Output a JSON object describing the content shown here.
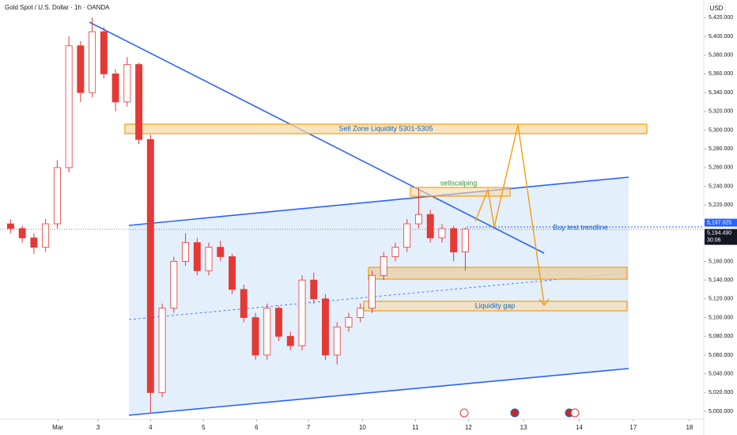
{
  "chart_data": {
    "type": "candlestick",
    "title": "Gold Spot / U.S. Dollar · 1h · OANDA",
    "currency": "USD",
    "x": [
      -0.65,
      -0.43,
      -0.21,
      0.01,
      0.23,
      0.45,
      0.67,
      0.89,
      1.11,
      1.33,
      1.55,
      1.77,
      1.99,
      2.21,
      2.43,
      2.65,
      2.87,
      3.09,
      3.31,
      3.53,
      3.75,
      3.97,
      4.19,
      4.41,
      4.63,
      4.85,
      5.07,
      5.29,
      5.51,
      5.73,
      5.95,
      6.17,
      6.39,
      6.61,
      6.83,
      7.05,
      7.27,
      7.49,
      7.71,
      7.93
    ],
    "open": [
      5200,
      5195,
      5185,
      5175,
      5200,
      5260,
      5390,
      5340,
      5405,
      5360,
      5330,
      5370,
      5290,
      5020,
      5110,
      5160,
      5180,
      5150,
      5175,
      5165,
      5130,
      5100,
      5060,
      5110,
      5080,
      5070,
      5140,
      5120,
      5060,
      5090,
      5100,
      5110,
      5145,
      5165,
      5175,
      5200,
      5210,
      5185,
      5195,
      5170
    ],
    "high": [
      5205,
      5198,
      5190,
      5205,
      5268,
      5400,
      5395,
      5420,
      5410,
      5365,
      5378,
      5372,
      5295,
      5115,
      5165,
      5190,
      5185,
      5180,
      5182,
      5168,
      5135,
      5105,
      5115,
      5112,
      5085,
      5145,
      5148,
      5125,
      5095,
      5105,
      5115,
      5150,
      5170,
      5180,
      5205,
      5238,
      5215,
      5200,
      5198,
      5196
    ],
    "low": [
      5190,
      5180,
      5168,
      5170,
      5195,
      5255,
      5330,
      5335,
      5355,
      5320,
      5325,
      5285,
      4998,
      5015,
      5105,
      5155,
      5145,
      5145,
      5160,
      5125,
      5095,
      5055,
      5055,
      5075,
      5065,
      5065,
      5115,
      5055,
      5050,
      5085,
      5095,
      5105,
      5140,
      5160,
      5170,
      5195,
      5180,
      5180,
      5160,
      5150
    ],
    "close": [
      5195,
      5185,
      5175,
      5200,
      5260,
      5390,
      5340,
      5405,
      5360,
      5330,
      5370,
      5290,
      5020,
      5110,
      5160,
      5180,
      5150,
      5175,
      5165,
      5130,
      5100,
      5060,
      5110,
      5080,
      5070,
      5140,
      5120,
      5060,
      5090,
      5100,
      5110,
      5145,
      5165,
      5175,
      5200,
      5210,
      5185,
      5195,
      5170,
      5194.49
    ],
    "up_color": "#ffffff",
    "down_color": "#e53935",
    "wick_color": "#e53935",
    "xlim": [
      -0.85,
      12.43
    ],
    "xticks": [
      {
        "value": 0.24,
        "label": "Mar"
      },
      {
        "value": 1,
        "label": "3"
      },
      {
        "value": 1.99,
        "label": "4"
      },
      {
        "value": 2.99,
        "label": "5"
      },
      {
        "value": 3.99,
        "label": "6"
      },
      {
        "value": 4.97,
        "label": "7"
      },
      {
        "value": 5.99,
        "label": "10"
      },
      {
        "value": 6.99,
        "label": "11"
      },
      {
        "value": 7.99,
        "label": "12"
      },
      {
        "value": 9.03,
        "label": "13"
      },
      {
        "value": 10.08,
        "label": "14"
      },
      {
        "value": 11.1,
        "label": "17"
      },
      {
        "value": 12.16,
        "label": "18"
      }
    ],
    "ylim": [
      4991.6,
      5438.8
    ],
    "yticks": [
      {
        "value": 5000,
        "label": "5,000.000"
      },
      {
        "value": 5020,
        "label": "5,020.000"
      },
      {
        "value": 5040,
        "label": "5,040.000"
      },
      {
        "value": 5060,
        "label": "5,060.000"
      },
      {
        "value": 5080,
        "label": "5,080.000"
      },
      {
        "value": 5100,
        "label": "5,100.000"
      },
      {
        "value": 5120,
        "label": "5,120.000"
      },
      {
        "value": 5140,
        "label": "5,140.000"
      },
      {
        "value": 5160,
        "label": "5,160.000"
      },
      {
        "value": 5180,
        "label": "5,180.000"
      },
      {
        "value": 5200,
        "label": "5,200.000"
      },
      {
        "value": 5220,
        "label": "5,220.000"
      },
      {
        "value": 5240,
        "label": "5,240.000"
      },
      {
        "value": 5260,
        "label": "5,260.000"
      },
      {
        "value": 5280,
        "label": "5,280.000"
      },
      {
        "value": 5300,
        "label": "5,300.000"
      },
      {
        "value": 5320,
        "label": "5,320.000"
      },
      {
        "value": 5340,
        "label": "5,340.000"
      },
      {
        "value": 5360,
        "label": "5,360.000"
      },
      {
        "value": 5380,
        "label": "5,380.000"
      },
      {
        "value": 5400,
        "label": "5,400.000"
      },
      {
        "value": 5420,
        "label": "5,420.000"
      }
    ],
    "price_tags": [
      {
        "value": 5197.025,
        "label": "5,197.025",
        "color": "#2962ff"
      },
      {
        "value": 5194.49,
        "label": "5,194.490",
        "color": "#131722"
      }
    ],
    "countdown": "30:06",
    "annotations": {
      "sell_zone": "Sell Zone Liquidity 5301-5305",
      "scalp": "sellscalping",
      "buy": "Buy test trendline",
      "gap": "Liquidity gap"
    }
  }
}
